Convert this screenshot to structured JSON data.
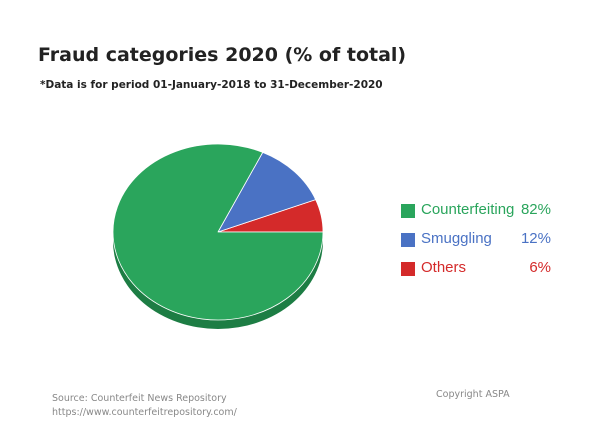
{
  "header": {
    "title": "Fraud categories 2020 (% of total)",
    "subtitle": "*Data is for period 01-January-2018 to 31-December-2020"
  },
  "legend": [
    {
      "label": "Counterfeiting",
      "pct": "82%"
    },
    {
      "label": "Smuggling",
      "pct": "12%"
    },
    {
      "label": "Others",
      "pct": "6%"
    }
  ],
  "footer": {
    "source": "Source: Counterfeit News Repository",
    "url": "https://www.counterfeitrepository.com/",
    "copyright": "Copyright ASPA"
  },
  "chart_data": {
    "type": "pie",
    "title": "Fraud categories 2020 (% of total)",
    "subtitle": "*Data is for period 01-January-2018 to 31-December-2020",
    "categories": [
      "Counterfeiting",
      "Smuggling",
      "Others"
    ],
    "values": [
      82,
      12,
      6
    ],
    "colors": [
      "#2aa55c",
      "#4a72c4",
      "#d42a2a"
    ],
    "side_colors": [
      "#1d7d44",
      "#33559a",
      "#a11d1d"
    ],
    "legend_position": "right",
    "style": "3d-tilted"
  }
}
